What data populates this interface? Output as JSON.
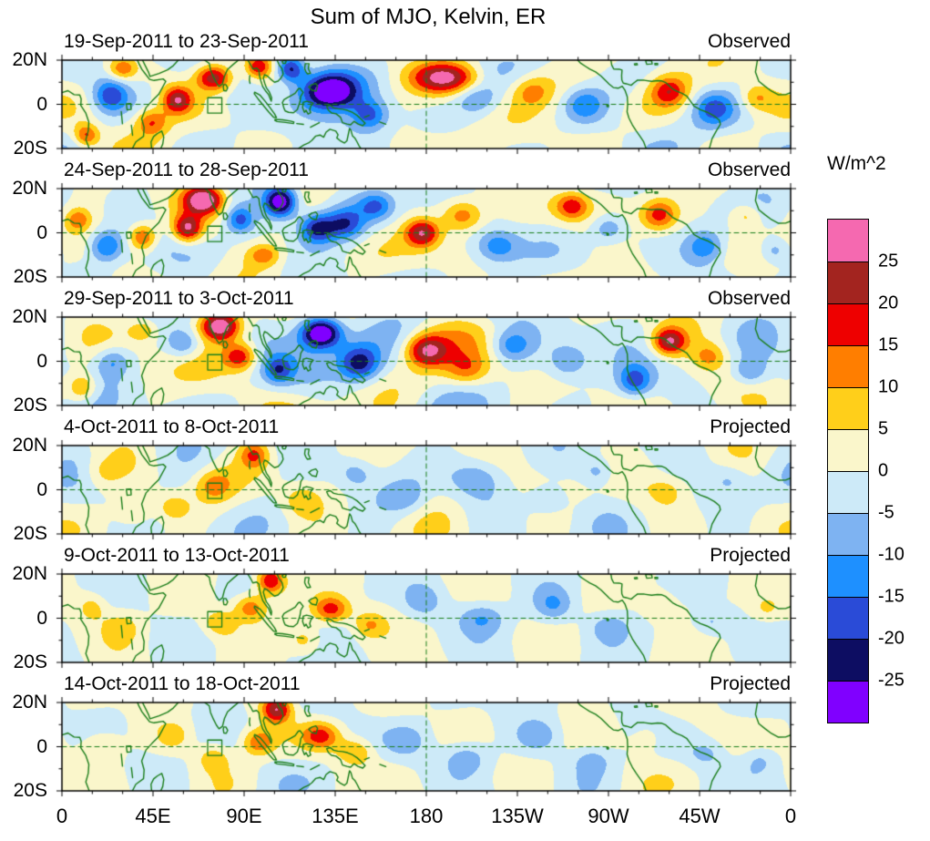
{
  "chart_data": {
    "type": "heatmap",
    "variant": "filled_contour_longitude_latitude_panels",
    "title": "Sum of MJO, Kelvin, ER",
    "units": "W/m^2",
    "lon_range": [
      0,
      360
    ],
    "lat_range": [
      -20,
      20
    ],
    "grid": false,
    "x_ticks": {
      "labels": [
        "0",
        "45E",
        "90E",
        "135E",
        "180",
        "135W",
        "90W",
        "45W",
        "0"
      ],
      "lons": [
        0,
        45,
        90,
        135,
        180,
        225,
        270,
        315,
        360
      ]
    },
    "y_ticks": {
      "labels": [
        "20N",
        "0",
        "20S"
      ],
      "lats": [
        20,
        0,
        -20
      ]
    },
    "colorbar": {
      "units_label": "W/m^2",
      "tick_labels_top_to_bottom": [
        "25",
        "20",
        "15",
        "10",
        "5",
        "0",
        "-5",
        "-10",
        "-15",
        "-20",
        "-25"
      ],
      "level_step": 5,
      "band_colors_low_to_high": [
        "#8000FF",
        "#0D0D62",
        "#2A4BD7",
        "#1E90FF",
        "#7EB3F2",
        "#CDEAF8",
        "#FAF6CB",
        "#FFCF1A",
        "#FF7E00",
        "#EE0000",
        "#A3241F",
        "#F569B0"
      ]
    },
    "map_style": {
      "coast_color": "#1B7E1B",
      "background": "#FFFFFF",
      "equator_dashed": true,
      "dateline_dashed_lon": 180,
      "roi_box_lon": [
        72,
        79
      ],
      "roi_box_lat": [
        -4,
        3
      ]
    },
    "panels": [
      {
        "date_label": "19-Sep-2011 to 23-Sep-2011",
        "type_label": "Observed",
        "seed": 101,
        "texture_amp": 4.5,
        "anomalies": [
          [
            132,
            6,
            -36,
            15,
            9
          ],
          [
            113,
            16,
            -24,
            7,
            6
          ],
          [
            152,
            -5,
            -16,
            9,
            7
          ],
          [
            97,
            17,
            18,
            6,
            5
          ],
          [
            75,
            12,
            26,
            9,
            6
          ],
          [
            57,
            2,
            22,
            7,
            6
          ],
          [
            44,
            -8,
            14,
            8,
            6
          ],
          [
            24,
            4,
            -16,
            8,
            7
          ],
          [
            12,
            -14,
            16,
            6,
            5
          ],
          [
            30,
            16,
            14,
            7,
            5
          ],
          [
            190,
            12,
            26,
            16,
            7
          ],
          [
            205,
            2,
            -8,
            10,
            7
          ],
          [
            232,
            6,
            10,
            10,
            7
          ],
          [
            258,
            0,
            -10,
            9,
            7
          ],
          [
            300,
            6,
            16,
            9,
            7
          ],
          [
            322,
            -2,
            -12,
            9,
            7
          ],
          [
            343,
            3,
            10,
            8,
            6
          ]
        ]
      },
      {
        "date_label": "24-Sep-2011 to 28-Sep-2011",
        "type_label": "Observed",
        "seed": 202,
        "texture_amp": 4.5,
        "anomalies": [
          [
            70,
            15,
            30,
            9,
            6
          ],
          [
            62,
            2,
            24,
            7,
            6
          ],
          [
            40,
            -2,
            18,
            7,
            6
          ],
          [
            22,
            -6,
            -16,
            8,
            7
          ],
          [
            8,
            6,
            12,
            6,
            5
          ],
          [
            88,
            6,
            -16,
            7,
            6
          ],
          [
            108,
            14,
            -32,
            8,
            7
          ],
          [
            126,
            2,
            -22,
            9,
            7
          ],
          [
            140,
            4,
            -16,
            9,
            7
          ],
          [
            155,
            12,
            -12,
            8,
            6
          ],
          [
            178,
            0,
            22,
            8,
            6
          ],
          [
            198,
            8,
            14,
            10,
            7
          ],
          [
            215,
            -6,
            -12,
            10,
            7
          ],
          [
            252,
            12,
            16,
            8,
            6
          ],
          [
            270,
            2,
            -10,
            8,
            6
          ],
          [
            295,
            8,
            18,
            9,
            7
          ],
          [
            318,
            -6,
            -14,
            9,
            7
          ],
          [
            338,
            8,
            10,
            8,
            6
          ],
          [
            352,
            -8,
            -10,
            8,
            6
          ],
          [
            100,
            -10,
            12,
            8,
            5
          ]
        ]
      },
      {
        "date_label": "29-Sep-2011 to 3-Oct-2011",
        "type_label": "Observed",
        "seed": 303,
        "texture_amp": 4.5,
        "anomalies": [
          [
            78,
            16,
            30,
            9,
            6
          ],
          [
            88,
            2,
            18,
            8,
            6
          ],
          [
            60,
            8,
            -12,
            8,
            6
          ],
          [
            128,
            13,
            -34,
            10,
            7
          ],
          [
            147,
            -1,
            -20,
            10,
            8
          ],
          [
            107,
            -4,
            -14,
            7,
            6
          ],
          [
            180,
            5,
            22,
            10,
            7
          ],
          [
            200,
            -4,
            10,
            10,
            7
          ],
          [
            222,
            7,
            -12,
            10,
            7
          ],
          [
            250,
            0,
            -10,
            9,
            7
          ],
          [
            300,
            9,
            24,
            8,
            6
          ],
          [
            283,
            -9,
            -16,
            8,
            7
          ],
          [
            320,
            2,
            10,
            8,
            6
          ],
          [
            340,
            -5,
            -10,
            8,
            6
          ],
          [
            25,
            0,
            -12,
            9,
            7
          ],
          [
            10,
            -12,
            14,
            7,
            6
          ],
          [
            40,
            14,
            10,
            7,
            5
          ]
        ]
      },
      {
        "date_label": "4-Oct-2011 to 8-Oct-2011",
        "type_label": "Projected",
        "seed": 404,
        "texture_amp": 2.8,
        "anomalies": [
          [
            95,
            16,
            14,
            7,
            6
          ],
          [
            75,
            2,
            10,
            9,
            7
          ],
          [
            55,
            -8,
            8,
            8,
            6
          ],
          [
            118,
            -5,
            8,
            9,
            7
          ],
          [
            145,
            8,
            -8,
            9,
            7
          ],
          [
            170,
            -4,
            -7,
            10,
            7
          ],
          [
            205,
            5,
            -8,
            12,
            8
          ],
          [
            240,
            -5,
            -7,
            10,
            7
          ],
          [
            265,
            8,
            -8,
            8,
            6
          ],
          [
            300,
            0,
            6,
            10,
            7
          ],
          [
            330,
            5,
            -6,
            9,
            7
          ],
          [
            20,
            8,
            6,
            9,
            7
          ],
          [
            35,
            -10,
            7,
            8,
            6
          ]
        ]
      },
      {
        "date_label": "9-Oct-2011 to 13-Oct-2011",
        "type_label": "Projected",
        "seed": 505,
        "texture_amp": 2.8,
        "anomalies": [
          [
            103,
            17,
            22,
            7,
            6
          ],
          [
            93,
            5,
            14,
            8,
            6
          ],
          [
            78,
            -2,
            10,
            8,
            6
          ],
          [
            133,
            4,
            18,
            9,
            6
          ],
          [
            152,
            -3,
            10,
            8,
            6
          ],
          [
            120,
            -10,
            8,
            8,
            6
          ],
          [
            178,
            8,
            -8,
            9,
            7
          ],
          [
            208,
            0,
            -10,
            11,
            7
          ],
          [
            243,
            6,
            -9,
            9,
            7
          ],
          [
            270,
            -4,
            -7,
            9,
            6
          ],
          [
            295,
            6,
            6,
            9,
            7
          ],
          [
            320,
            -2,
            -7,
            9,
            6
          ],
          [
            348,
            4,
            6,
            8,
            6
          ],
          [
            15,
            5,
            7,
            7,
            6
          ],
          [
            30,
            -4,
            7,
            9,
            7
          ]
        ]
      },
      {
        "date_label": "14-Oct-2011 to 18-Oct-2011",
        "type_label": "Projected",
        "seed": 606,
        "texture_amp": 2.8,
        "anomalies": [
          [
            106,
            17,
            24,
            7,
            6
          ],
          [
            97,
            2,
            14,
            8,
            6
          ],
          [
            128,
            5,
            16,
            9,
            6
          ],
          [
            145,
            -2,
            10,
            9,
            6
          ],
          [
            75,
            -5,
            8,
            8,
            6
          ],
          [
            170,
            3,
            -7,
            10,
            7
          ],
          [
            200,
            -5,
            -8,
            11,
            7
          ],
          [
            235,
            5,
            -8,
            10,
            7
          ],
          [
            262,
            -6,
            -7,
            9,
            6
          ],
          [
            290,
            4,
            5,
            9,
            7
          ],
          [
            318,
            -3,
            -6,
            9,
            6
          ],
          [
            20,
            0,
            6,
            10,
            7
          ],
          [
            345,
            -6,
            -6,
            8,
            6
          ],
          [
            55,
            5,
            7,
            8,
            6
          ]
        ]
      }
    ]
  }
}
